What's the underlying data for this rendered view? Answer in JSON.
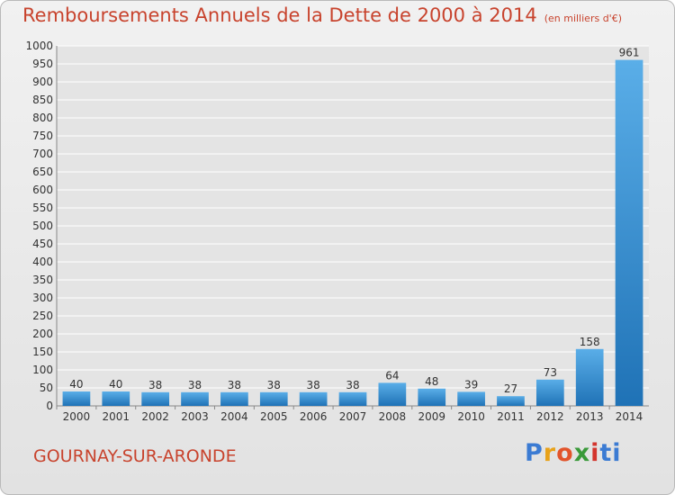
{
  "title": "Remboursements Annuels de la Dette de 2000 à 2014",
  "unit": "(en milliers d'€)",
  "commune": "GOURNAY-SUR-ARONDE",
  "logo_letters": [
    "P",
    "r",
    "o",
    "x",
    "i",
    "ti"
  ],
  "colors": {
    "title": "#c8432d",
    "bar_light": "#5aaee8",
    "bar_dark": "#1f72b6",
    "grid": "#ffffff"
  },
  "chart_data": {
    "type": "bar",
    "categories": [
      "2000",
      "2001",
      "2002",
      "2003",
      "2004",
      "2005",
      "2006",
      "2007",
      "2008",
      "2009",
      "2010",
      "2011",
      "2012",
      "2013",
      "2014"
    ],
    "values": [
      40,
      40,
      38,
      38,
      38,
      38,
      38,
      38,
      64,
      48,
      39,
      27,
      73,
      158,
      961
    ],
    "ylim": [
      0,
      1000
    ],
    "yticks": [
      0,
      50,
      100,
      150,
      200,
      250,
      300,
      350,
      400,
      450,
      500,
      550,
      600,
      650,
      700,
      750,
      800,
      850,
      900,
      950,
      1000
    ],
    "grid": true,
    "data_labels": true
  }
}
